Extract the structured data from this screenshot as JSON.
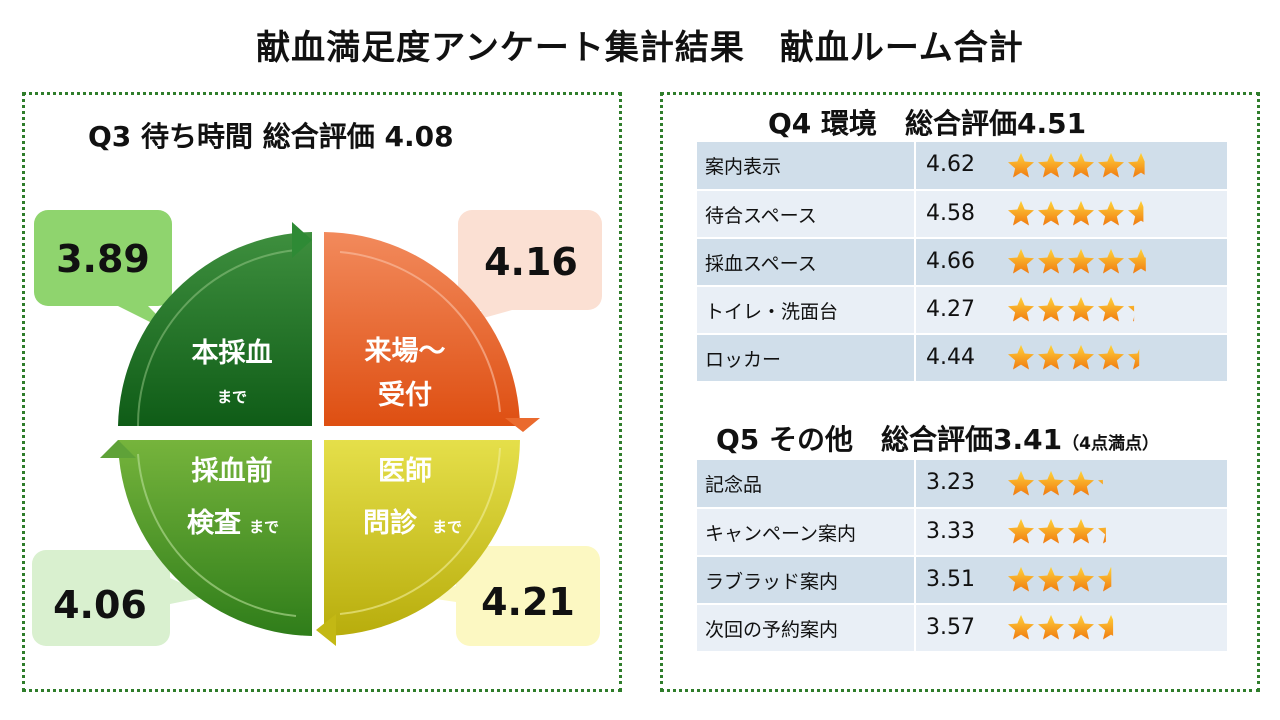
{
  "page_title": "献血満足度アンケート集計結果　献血ルーム合計",
  "q3": {
    "title": "Q3 待ち時間 総合評価 4.08",
    "segments": [
      {
        "key": "top-left",
        "label_main": "本採血",
        "label_sub": "まで",
        "score": "3.89"
      },
      {
        "key": "top-right",
        "label_line1": "来場～",
        "label_line2": "受付",
        "score": "4.16"
      },
      {
        "key": "bottom-right",
        "label_line1": "医師",
        "label_line2_main": "問診",
        "label_line2_sub": "まで",
        "score": "4.21"
      },
      {
        "key": "bottom-left",
        "label_line1": "採血前",
        "label_line2_main": "検査",
        "label_line2_sub": "まで",
        "score": "4.06"
      }
    ]
  },
  "q4": {
    "title_prefix": "Q4 環境　総合評価",
    "title_score": "4.51",
    "rows": [
      {
        "label": "案内表示",
        "score": "4.62",
        "rating": 4.62
      },
      {
        "label": "待合スペース",
        "score": "4.58",
        "rating": 4.58
      },
      {
        "label": "採血スペース",
        "score": "4.66",
        "rating": 4.66
      },
      {
        "label": "トイレ・洗面台",
        "score": "4.27",
        "rating": 4.27
      },
      {
        "label": "ロッカー",
        "score": "4.44",
        "rating": 4.44
      }
    ]
  },
  "q5": {
    "title_prefix": "Q5 その他　総合評価",
    "title_score": "3.41",
    "note": "（4点満点）",
    "rows": [
      {
        "label": "記念品",
        "score": "3.23",
        "rating": 3.23
      },
      {
        "label": "キャンペーン案内",
        "score": "3.33",
        "rating": 3.33
      },
      {
        "label": "ラブラッド案内",
        "score": "3.51",
        "rating": 3.51
      },
      {
        "label": "次回の予約案内",
        "score": "3.57",
        "rating": 3.57
      }
    ]
  },
  "colors": {
    "border_green": "#2f7d2b",
    "dark_green": "#1e6e1e",
    "orange": "#e8632a",
    "yellow": "#c9c21c",
    "light_green": "#4f9a2a",
    "star": "#f5a623"
  }
}
